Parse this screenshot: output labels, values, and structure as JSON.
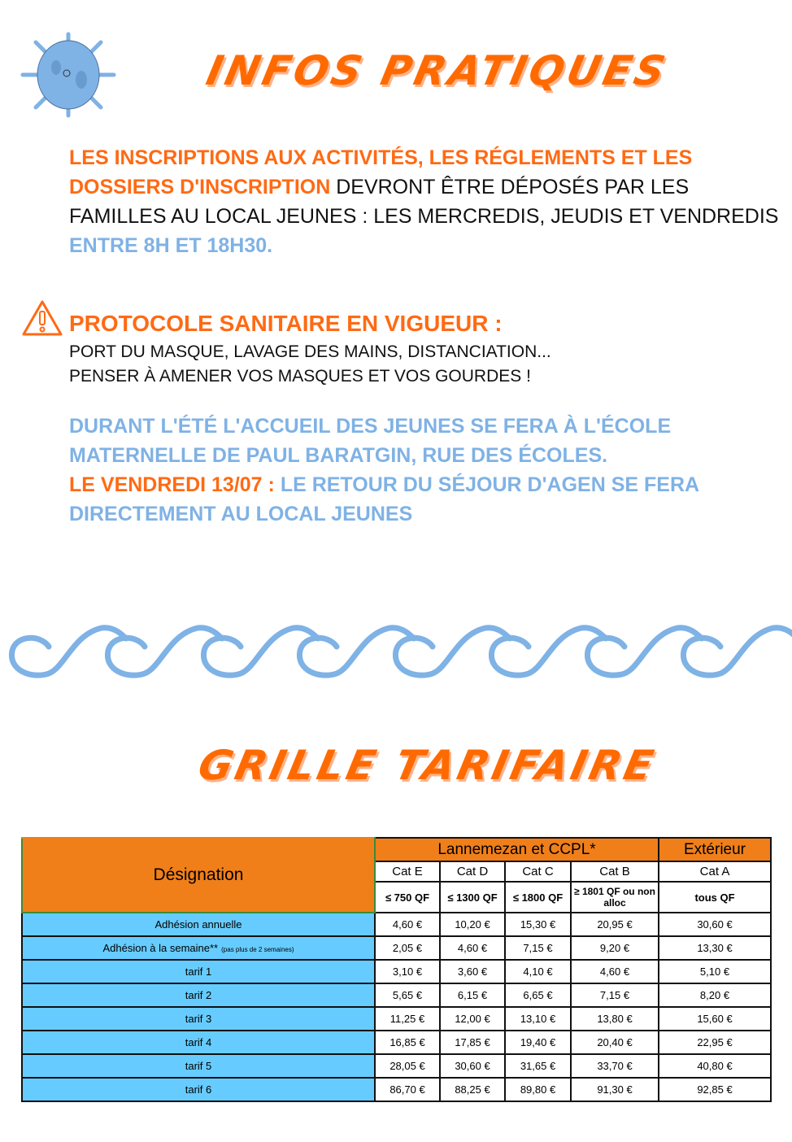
{
  "header": {
    "title": "INFOS PRATIQUES",
    "virus_icon": "virus-icon"
  },
  "inscriptions": {
    "part1": "LES INSCRIPTIONS AUX ACTIVITÉS, LES RÉGLEMENTS  ET LES",
    "part2": "DOSSIERS D'INSCRIPTION",
    "part3": " DEVRONT ÊTRE DÉPOSÉS PAR LES",
    "part4": "FAMILLES AU LOCAL JEUNES : LES MERCREDIS, JEUDIS ET VENDREDIS",
    "part5": "ENTRE 8H ET 18H30."
  },
  "protocole": {
    "title": "PROTOCOLE SANITAIRE EN VIGUEUR :",
    "line1": "PORT DU MASQUE, LAVAGE DES MAINS, DISTANCIATION...",
    "line2": "PENSER À AMENER VOS MASQUES ET VOS GOURDES !",
    "icon": "warning-icon"
  },
  "accueil": {
    "line1": "DURANT L'ÉTÉ L'ACCUEIL DES JEUNES SE FERA À L'ÉCOLE",
    "line2": "MATERNELLE DE PAUL BARATGIN, RUE DES ÉCOLES.",
    "date": "LE VENDREDI 13/07 : ",
    "line3": " LE RETOUR DU SÉJOUR D'AGEN SE FERA",
    "line4": "DIRECTEMENT AU LOCAL JEUNES"
  },
  "grille": {
    "title": "GRILLE TARIFAIRE"
  },
  "colors": {
    "orange": "#ff6a13",
    "blue_text": "#7fb2e5",
    "table_orange": "#f07f1a",
    "table_blue": "#66ccff"
  },
  "table": {
    "designation": "Désignation",
    "group1": "Lannemezan et CCPL*",
    "group2": "Extérieur",
    "cats": [
      "Cat E",
      "Cat D",
      "Cat C",
      "Cat B",
      "Cat A"
    ],
    "qf": [
      "≤ 750 QF",
      "≤ 1300 QF",
      "≤ 1800 QF",
      "≥ 1801 QF ou non alloc",
      "tous QF"
    ],
    "rows": [
      {
        "label": "Adhésion annuelle",
        "note": "",
        "values": [
          "4,60 €",
          "10,20 €",
          "15,30 €",
          "20,95 €",
          "30,60 €"
        ]
      },
      {
        "label": "Adhésion à la semaine**",
        "note": "(pas plus de 2 semaines)",
        "values": [
          "2,05 €",
          "4,60 €",
          "7,15 €",
          "9,20 €",
          "13,30 €"
        ]
      },
      {
        "label": "tarif 1",
        "note": "",
        "values": [
          "3,10 €",
          "3,60 €",
          "4,10 €",
          "4,60 €",
          "5,10 €"
        ]
      },
      {
        "label": "tarif 2",
        "note": "",
        "values": [
          "5,65 €",
          "6,15 €",
          "6,65 €",
          "7,15 €",
          "8,20 €"
        ]
      },
      {
        "label": "tarif 3",
        "note": "",
        "values": [
          "11,25 €",
          "12,00 €",
          "13,10 €",
          "13,80 €",
          "15,60 €"
        ]
      },
      {
        "label": "tarif 4",
        "note": "",
        "values": [
          "16,85 €",
          "17,85 €",
          "19,40 €",
          "20,40 €",
          "22,95 €"
        ]
      },
      {
        "label": "tarif 5",
        "note": "",
        "values": [
          "28,05 €",
          "30,60 €",
          "31,65 €",
          "33,70 €",
          "40,80 €"
        ]
      },
      {
        "label": "tarif 6",
        "note": "",
        "values": [
          "86,70 €",
          "88,25 €",
          "89,80 €",
          "91,30 €",
          "92,85 €"
        ]
      }
    ]
  }
}
